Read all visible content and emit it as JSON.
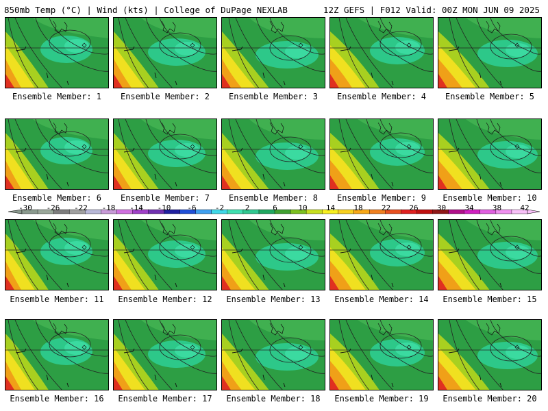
{
  "header": {
    "left_title": "850mb Temp (°C) | Wind (kts) | College of DuPage NEXLAB",
    "right_title": "12Z GEFS | F012 Valid: 00Z MON JUN 09 2025"
  },
  "members": [
    {
      "label": "Ensemble Member: 1"
    },
    {
      "label": "Ensemble Member: 2"
    },
    {
      "label": "Ensemble Member: 3"
    },
    {
      "label": "Ensemble Member: 4"
    },
    {
      "label": "Ensemble Member: 5"
    },
    {
      "label": "Ensemble Member: 6"
    },
    {
      "label": "Ensemble Member: 7"
    },
    {
      "label": "Ensemble Member: 8"
    },
    {
      "label": "Ensemble Member: 9"
    },
    {
      "label": "Ensemble Member: 10"
    },
    {
      "label": "Ensemble Member: 11"
    },
    {
      "label": "Ensemble Member: 12"
    },
    {
      "label": "Ensemble Member: 13"
    },
    {
      "label": "Ensemble Member: 14"
    },
    {
      "label": "Ensemble Member: 15"
    },
    {
      "label": "Ensemble Member: 16"
    },
    {
      "label": "Ensemble Member: 17"
    },
    {
      "label": "Ensemble Member: 18"
    },
    {
      "label": "Ensemble Member: 19"
    },
    {
      "label": "Ensemble Member: 20"
    }
  ],
  "colorbar": {
    "tick_labels": [
      "-30",
      "-26",
      "-22",
      "-18",
      "-14",
      "-10",
      "-6",
      "-2",
      "2",
      "6",
      "10",
      "14",
      "18",
      "22",
      "26",
      "30",
      "34",
      "38",
      "42"
    ],
    "colors": [
      "#8a9a8e",
      "#9aa89a",
      "#7d7d7d",
      "#a0a0a0",
      "#b8b8d8",
      "#c89ad8",
      "#d070e0",
      "#a040c8",
      "#7030b0",
      "#2020a0",
      "#2050d8",
      "#40a0f0",
      "#40d8e8",
      "#40e0b0",
      "#30c890",
      "#20a860",
      "#40a030",
      "#7cc020",
      "#c8e020",
      "#f8f020",
      "#f8d020",
      "#f8a818",
      "#f08020",
      "#e85020",
      "#e02020",
      "#c01010",
      "#901818",
      "#b0108a",
      "#d020c0",
      "#e060e0",
      "#f090f0",
      "#f8c0f8"
    ]
  },
  "map_colors": {
    "teal": "#2ecf95",
    "green_light": "#40b050",
    "green_dark": "#1e8f3a",
    "yellow_green": "#a8d020",
    "yellow": "#f0e020",
    "orange": "#f0a018",
    "red": "#e03020"
  }
}
